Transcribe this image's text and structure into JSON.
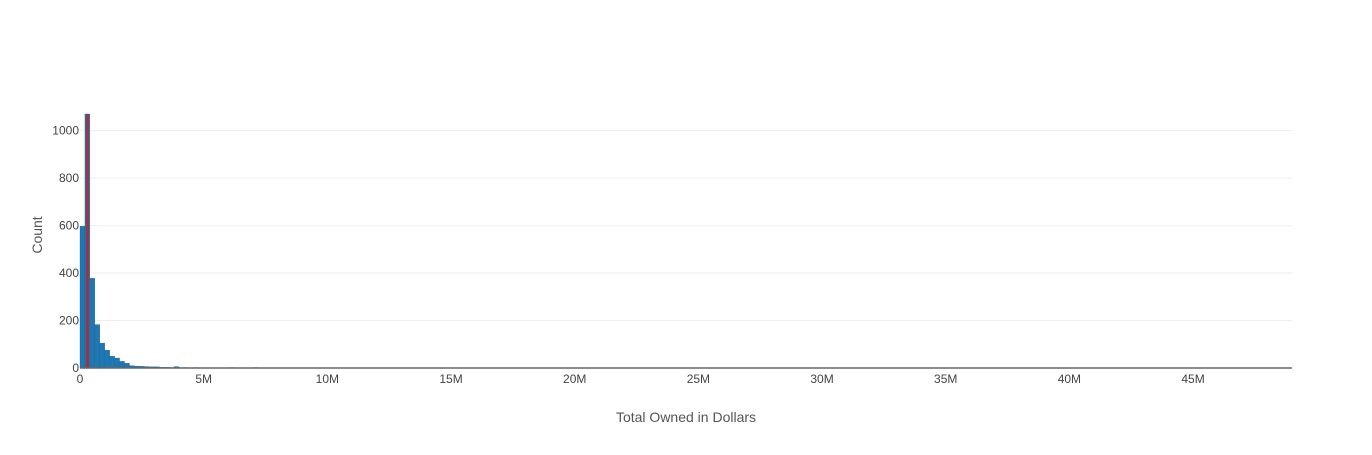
{
  "chart_data": {
    "type": "bar",
    "title": "",
    "xlabel": "Total Owned in Dollars",
    "ylabel": "Count",
    "xlim": [
      0,
      49000000
    ],
    "ylim": [
      0,
      1070
    ],
    "x_ticks": [
      {
        "value": 0,
        "label": "0"
      },
      {
        "value": 5000000,
        "label": "5M"
      },
      {
        "value": 10000000,
        "label": "10M"
      },
      {
        "value": 15000000,
        "label": "15M"
      },
      {
        "value": 20000000,
        "label": "20M"
      },
      {
        "value": 25000000,
        "label": "25M"
      },
      {
        "value": 30000000,
        "label": "30M"
      },
      {
        "value": 35000000,
        "label": "35M"
      },
      {
        "value": 40000000,
        "label": "40M"
      },
      {
        "value": 45000000,
        "label": "45M"
      }
    ],
    "y_ticks": [
      {
        "value": 0,
        "label": "0"
      },
      {
        "value": 200,
        "label": "200"
      },
      {
        "value": 400,
        "label": "400"
      },
      {
        "value": 600,
        "label": "600"
      },
      {
        "value": 800,
        "label": "800"
      },
      {
        "value": 1000,
        "label": "1000"
      }
    ],
    "grid": true,
    "bin_width": 200000,
    "bins": [
      {
        "x0": 0,
        "count": 597
      },
      {
        "x0": 200000,
        "count": 1070
      },
      {
        "x0": 400000,
        "count": 378
      },
      {
        "x0": 600000,
        "count": 183
      },
      {
        "x0": 800000,
        "count": 105
      },
      {
        "x0": 1000000,
        "count": 75
      },
      {
        "x0": 1200000,
        "count": 50
      },
      {
        "x0": 1400000,
        "count": 42
      },
      {
        "x0": 1600000,
        "count": 28
      },
      {
        "x0": 1800000,
        "count": 20
      },
      {
        "x0": 2000000,
        "count": 10
      },
      {
        "x0": 2200000,
        "count": 8
      },
      {
        "x0": 2400000,
        "count": 7
      },
      {
        "x0": 2600000,
        "count": 6
      },
      {
        "x0": 2800000,
        "count": 5
      },
      {
        "x0": 3000000,
        "count": 5
      },
      {
        "x0": 3200000,
        "count": 3
      },
      {
        "x0": 3400000,
        "count": 3
      },
      {
        "x0": 3600000,
        "count": 2
      },
      {
        "x0": 3800000,
        "count": 6
      },
      {
        "x0": 4000000,
        "count": 2
      },
      {
        "x0": 4200000,
        "count": 2
      },
      {
        "x0": 4400000,
        "count": 1
      },
      {
        "x0": 4600000,
        "count": 2
      },
      {
        "x0": 4800000,
        "count": 1
      },
      {
        "x0": 5200000,
        "count": 1
      },
      {
        "x0": 5600000,
        "count": 1
      },
      {
        "x0": 6000000,
        "count": 2
      },
      {
        "x0": 6400000,
        "count": 1
      },
      {
        "x0": 7000000,
        "count": 2
      },
      {
        "x0": 7200000,
        "count": 1
      },
      {
        "x0": 7600000,
        "count": 1
      },
      {
        "x0": 8400000,
        "count": 1
      },
      {
        "x0": 9200000,
        "count": 1
      },
      {
        "x0": 10200000,
        "count": 1
      }
    ],
    "reference_line": {
      "x": 300000,
      "color": "#a0333f"
    },
    "colors": {
      "bar": "#1f77b4",
      "bar_outline": "#1a5f90",
      "grid": "#eeeeee",
      "axis": "#666666"
    }
  }
}
